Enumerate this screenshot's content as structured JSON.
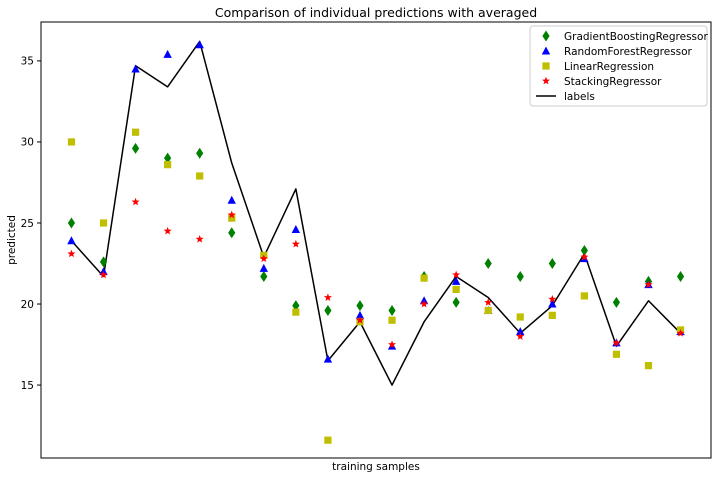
{
  "chart_data": {
    "type": "scatter",
    "title": "Comparison of individual predictions with averaged",
    "xlabel": "training samples",
    "ylabel": "predicted",
    "x": [
      0,
      1,
      2,
      3,
      4,
      5,
      6,
      7,
      8,
      9,
      10,
      11,
      12,
      13,
      14,
      15,
      16,
      17,
      18,
      19
    ],
    "xlim": [
      -0.95,
      19.95
    ],
    "ylim": [
      10.5,
      37.4
    ],
    "yticks": [
      15,
      20,
      25,
      30,
      35
    ],
    "grid": false,
    "legend_position": "top-right",
    "series": [
      {
        "name": "GradientBoostingRegressor",
        "marker": "diamond",
        "color": "#008000",
        "values": [
          25.0,
          22.6,
          29.6,
          29.0,
          29.3,
          24.4,
          21.7,
          19.9,
          19.6,
          19.9,
          19.6,
          21.7,
          20.1,
          22.5,
          21.7,
          22.5,
          23.3,
          20.1,
          21.4,
          21.7
        ]
      },
      {
        "name": "RandomForestRegressor",
        "marker": "triangle",
        "color": "#0000ff",
        "values": [
          23.9,
          22.0,
          34.5,
          35.4,
          36.0,
          26.4,
          22.2,
          24.6,
          16.6,
          19.3,
          17.4,
          20.2,
          21.4,
          19.6,
          18.3,
          20.0,
          22.8,
          17.6,
          21.2,
          18.3
        ]
      },
      {
        "name": "LinearRegression",
        "marker": "square",
        "color": "#bfbf00",
        "values": [
          30.0,
          25.0,
          30.6,
          28.6,
          27.9,
          25.3,
          23.0,
          19.5,
          11.6,
          18.9,
          19.0,
          21.6,
          20.9,
          19.6,
          19.2,
          19.3,
          20.5,
          16.9,
          16.2,
          18.4
        ]
      },
      {
        "name": "StackingRegressor",
        "marker": "star",
        "color": "#ff0000",
        "values": [
          23.1,
          21.8,
          26.3,
          24.5,
          24.0,
          25.5,
          22.8,
          23.7,
          20.4,
          19.0,
          17.5,
          20.0,
          21.8,
          20.1,
          18.0,
          20.3,
          22.9,
          17.6,
          21.2,
          18.2
        ]
      },
      {
        "name": "labels",
        "marker": "line",
        "color": "#000000",
        "values": [
          23.9,
          21.7,
          34.7,
          33.4,
          36.2,
          28.7,
          22.9,
          27.1,
          16.5,
          18.9,
          15.0,
          18.9,
          21.7,
          20.4,
          18.2,
          19.9,
          23.1,
          17.4,
          20.2,
          18.2
        ]
      }
    ]
  }
}
